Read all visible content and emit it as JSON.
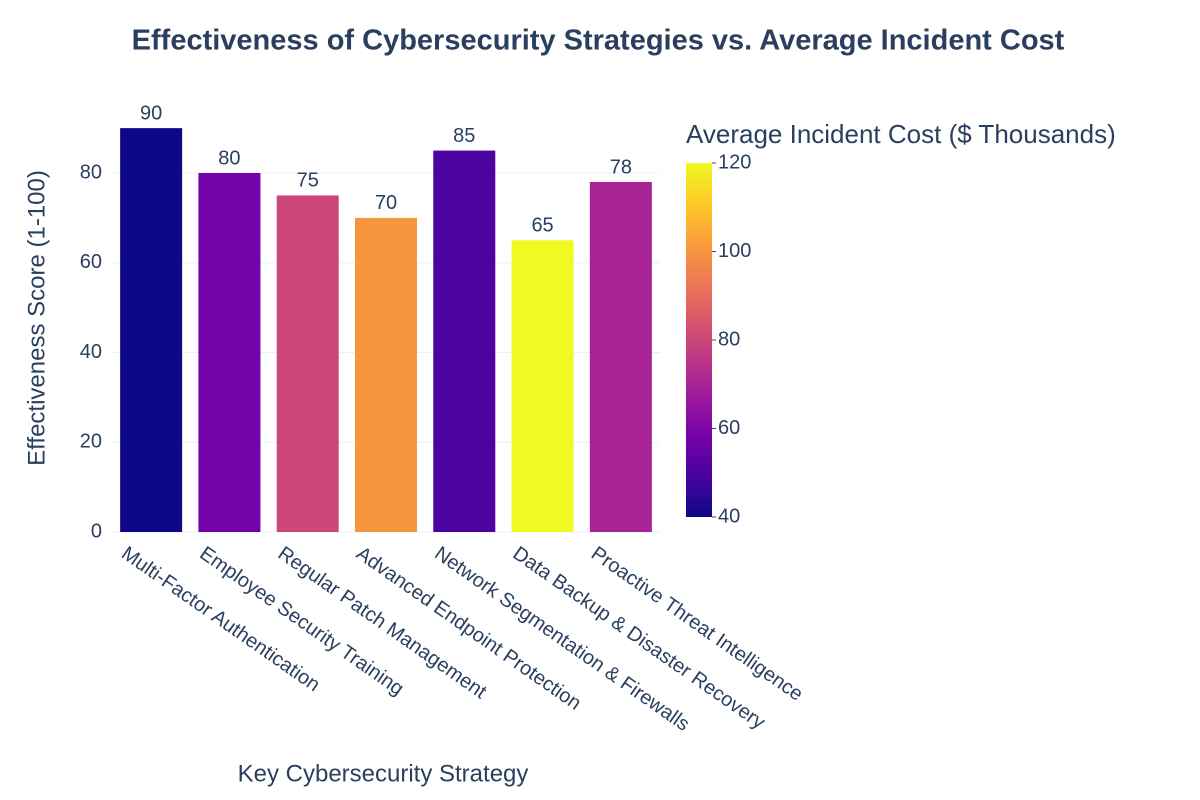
{
  "chart_data": {
    "type": "bar",
    "title": "Effectiveness of Cybersecurity Strategies vs. Average Incident Cost",
    "x_label": "Key Cybersecurity Strategy",
    "y_label": "Effectiveness Score (1-100)",
    "categories": [
      "Multi-Factor Authentication",
      "Employee Security Training",
      "Regular Patch Management",
      "Advanced Endpoint Protection",
      "Network Segmentation & Firewalls",
      "Data Backup & Disaster Recovery",
      "Proactive Threat Intelligence"
    ],
    "values": [
      90,
      80,
      75,
      70,
      85,
      65,
      78
    ],
    "color_values": [
      40,
      58,
      80,
      100,
      50,
      120,
      70
    ],
    "colorbar_title": "Average Incident Cost ($ Thousands)",
    "colorscale": [
      "#0d0887",
      "#46039f",
      "#7201a8",
      "#9c179e",
      "#bd3786",
      "#d8576b",
      "#ed7953",
      "#fb9f3a",
      "#fdca26",
      "#f0f921"
    ],
    "clim": [
      40,
      120
    ],
    "cticks": [
      40,
      60,
      80,
      100,
      120
    ],
    "ylim": [
      0,
      95
    ],
    "yticks": [
      0,
      20,
      40,
      60,
      80
    ],
    "grid": true
  }
}
